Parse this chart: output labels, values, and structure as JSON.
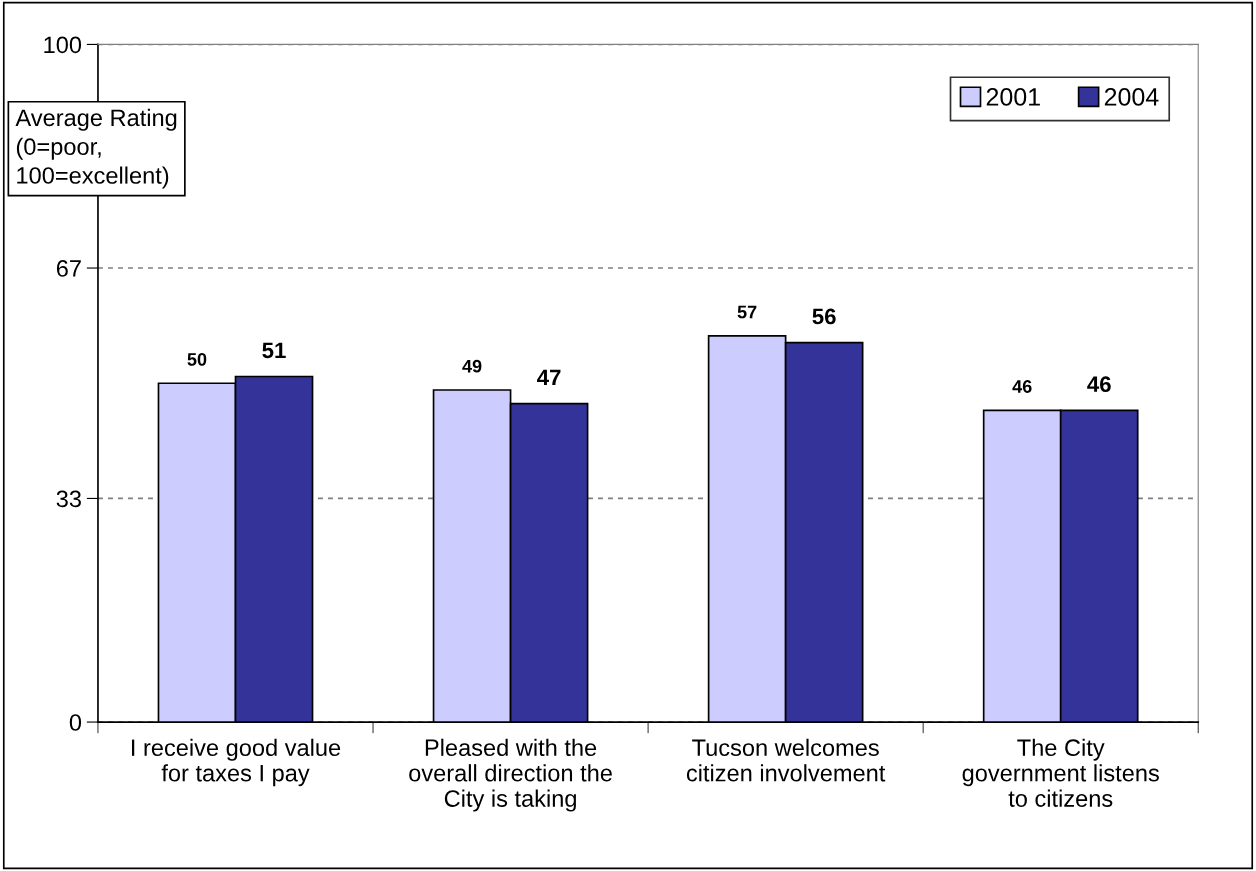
{
  "chart_data": {
    "type": "bar",
    "ylabel": "Average Rating\n(0=poor,\n100=excellent)",
    "categories": [
      "I receive good value\nfor taxes I pay",
      "Pleased with the\noverall direction the\nCity is taking",
      "Tucson welcomes\ncitizen involvement",
      "The City\ngovernment listens\nto citizens"
    ],
    "series": [
      {
        "name": "2001",
        "color": "#ccccff",
        "values": [
          50,
          49,
          57,
          46
        ]
      },
      {
        "name": "2004",
        "color": "#333399",
        "values": [
          51,
          47,
          56,
          46
        ]
      }
    ],
    "ylim": [
      0,
      100
    ],
    "yticks": [
      0,
      33,
      67,
      100
    ],
    "grid": "y",
    "legend": "top right",
    "data_labels": true
  }
}
